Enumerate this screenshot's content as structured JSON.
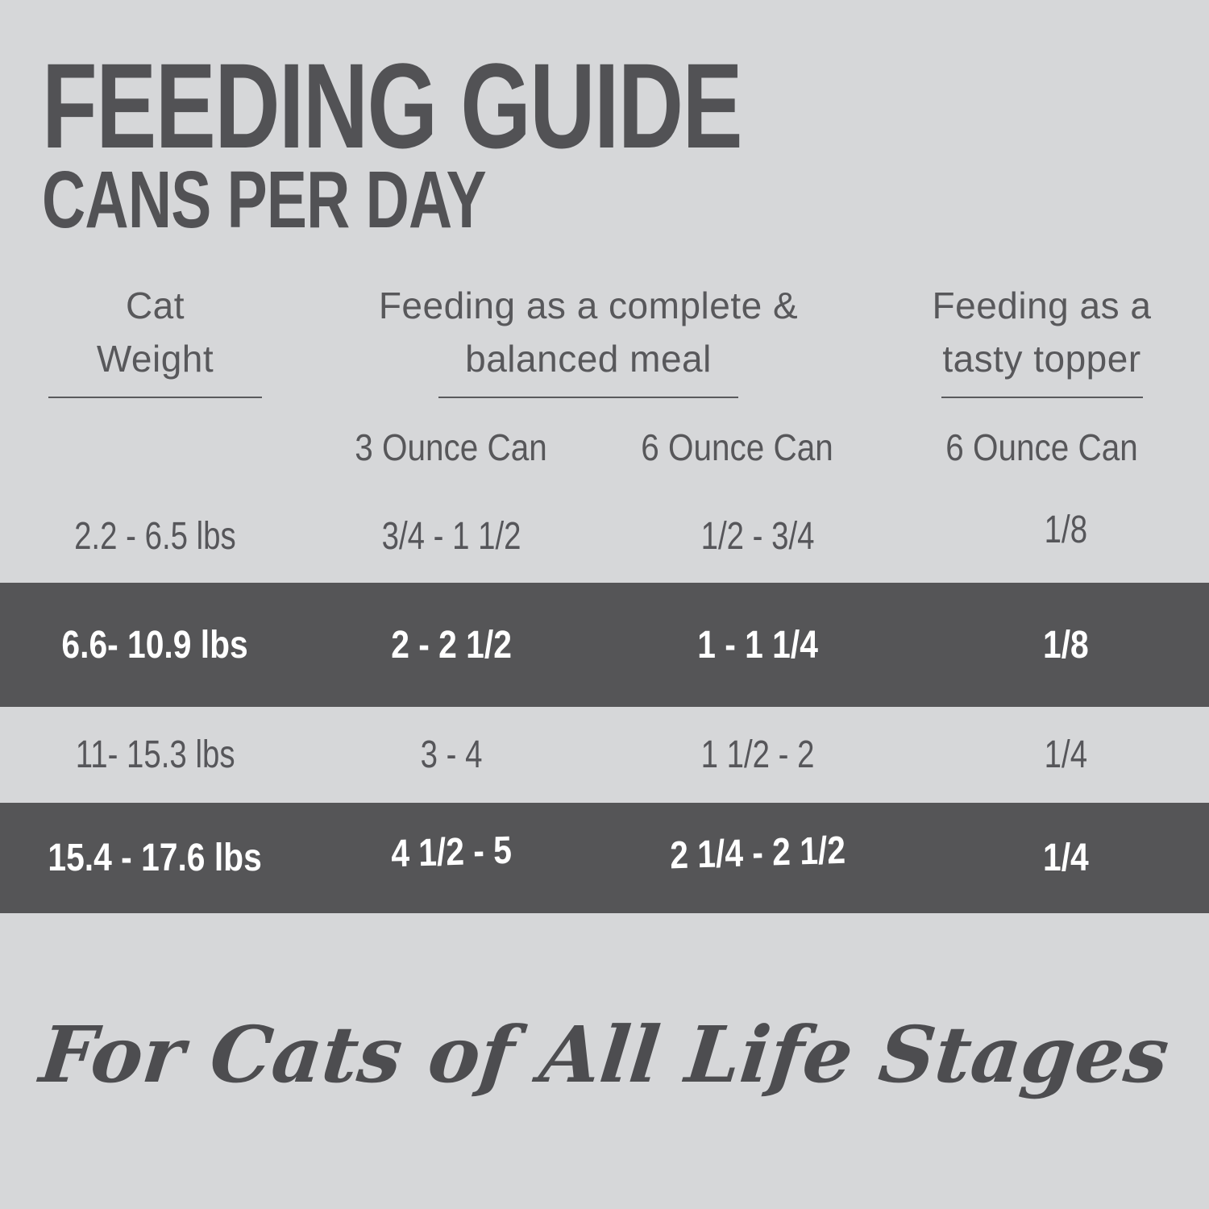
{
  "title": "FEEDING GUIDE",
  "subtitle": "CANS PER DAY",
  "table": {
    "header_groups": [
      {
        "line1": "Cat",
        "line2": "Weight"
      },
      {
        "line1": "Feeding as a complete &",
        "line2": "balanced meal"
      },
      {
        "line1": "Feeding as a",
        "line2": "tasty topper"
      }
    ],
    "subheaders": [
      "3 Ounce Can",
      "6 Ounce Can",
      "6 Ounce Can"
    ]
  },
  "chart_data": {
    "type": "table",
    "title": "FEEDING GUIDE",
    "subtitle": "CANS PER DAY",
    "column_groups": [
      "Cat Weight",
      "Feeding as a complete & balanced meal",
      "Feeding as a tasty topper"
    ],
    "columns": [
      "Cat Weight",
      "3 Ounce Can (complete & balanced meal)",
      "6 Ounce Can (complete & balanced meal)",
      "6 Ounce Can (tasty topper)"
    ],
    "rows": [
      [
        "2.2 - 6.5 lbs",
        "3/4 - 1 1/2",
        "1/2 - 3/4",
        "1/8"
      ],
      [
        "6.6- 10.9 lbs",
        "2 - 2 1/2",
        "1 - 1 1/4",
        "1/8"
      ],
      [
        "11- 15.3 lbs",
        "3 - 4",
        "1 1/2 - 2",
        "1/4"
      ],
      [
        "15.4 - 17.6 lbs",
        "4 1/2 - 5",
        "2 1/4 - 2 1/2",
        "1/4"
      ]
    ],
    "highlighted_row_indexes": [
      1,
      3
    ],
    "footnote": "For Cats of All Life Stages"
  },
  "footer": {
    "tagline": "For Cats of All Life Stages"
  },
  "colors": {
    "background": "#d6d7d9",
    "highlight_band": "#555557",
    "text": "#56565a",
    "text_on_band": "#ffffff"
  }
}
